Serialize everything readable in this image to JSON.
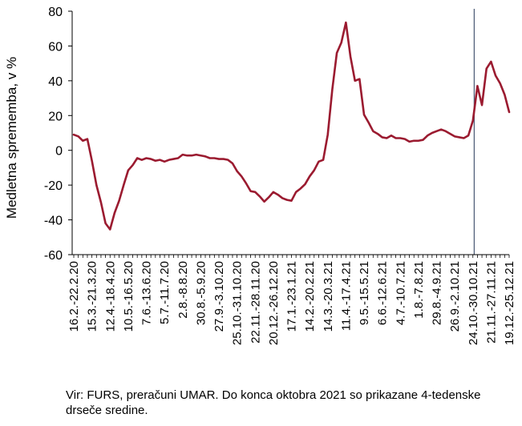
{
  "chart_data": {
    "type": "line",
    "ylabel": "Medletna sprememba, v %",
    "ylim": [
      -60,
      80
    ],
    "yticks": [
      -60,
      -40,
      -20,
      0,
      20,
      40,
      60,
      80
    ],
    "grid": false,
    "legend": "none",
    "line_color": "#9b1b30",
    "marker_line_color": "#51607a",
    "marker_at": "24.10.-30.10.21",
    "x_tick_labels": [
      "16.2.-22.2.20",
      "15.3.-21.3.20",
      "12.4.-18.4.20",
      "10.5.-16.5.20",
      "7.6.-13.6.20",
      "5.7.-11.7.20",
      "2.8.-8.8.20",
      "30.8.-5.9.20",
      "27.9.-3.10.20",
      "25.10.-31.10.20",
      "22.11.-28.11.20",
      "20.12.-26.12.20",
      "17.1.-23.1.21",
      "14.2.-20.2.21",
      "14.3.-20.3.21",
      "11.4.-17.4.21",
      "9.5.-15.5.21",
      "6.6.-12.6.21",
      "4.7.-10.7.21",
      "1.8.-7.8.21",
      "29.8.-4.9.21",
      "26.9.-2.10.21",
      "24.10.-30.10.21",
      "21.11.-27.11.21",
      "19.12.-25.12.21"
    ],
    "series": [
      {
        "values": [
          9,
          8,
          5.5,
          6.5,
          -6,
          -20,
          -30,
          -42,
          -45.5,
          -36,
          -29,
          -20,
          -11.5,
          -8.5,
          -4.5,
          -5.5,
          -4.5,
          -5,
          -6,
          -5.5,
          -6.5,
          -5.5,
          -5,
          -4.5,
          -2.5,
          -3,
          -3,
          -2.5,
          -3,
          -3.5,
          -4.5,
          -4.5,
          -5,
          -5,
          -5.5,
          -7.5,
          -12,
          -15,
          -19,
          -23.5,
          -24,
          -26.5,
          -29.5,
          -27,
          -24,
          -25.5,
          -27.5,
          -28.5,
          -29,
          -24,
          -22,
          -19.5,
          -15,
          -11.5,
          -6.5,
          -5.5,
          9,
          35,
          56,
          62,
          73.5,
          54,
          40,
          41,
          20.5,
          16,
          11,
          9.5,
          7.5,
          7,
          8.5,
          7,
          7,
          6.5,
          5,
          5.5,
          5.5,
          6,
          8.5,
          10,
          11,
          12,
          11,
          9.5,
          8,
          7.5,
          7,
          8.5,
          17,
          37,
          26,
          47,
          51,
          43,
          38.5,
          32,
          22
        ]
      }
    ]
  },
  "note": "Vir: FURS, preračuni UMAR. Do konca oktobra 2021 so prikazane 4-tedenske drseče sredine."
}
